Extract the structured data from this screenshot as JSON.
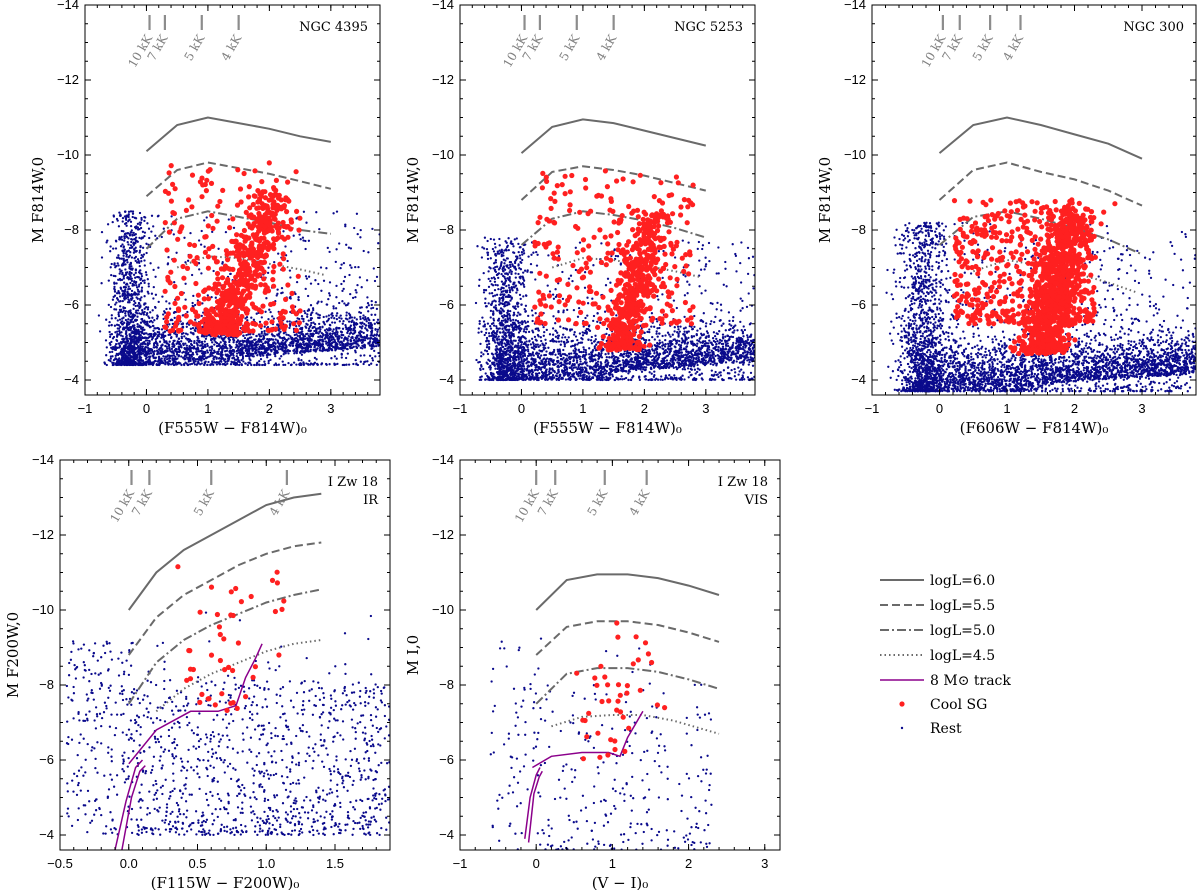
{
  "colors": {
    "curve": "#6a6a6a",
    "coolsg": "#ff2020",
    "rest": "#0a0a8c",
    "track": "#8b008b",
    "temp": "#8c8c8c"
  },
  "legend": {
    "items": [
      {
        "label": "logL=6.0",
        "kind": "solid"
      },
      {
        "label": "logL=5.5",
        "kind": "dashed"
      },
      {
        "label": "logL=5.0",
        "kind": "dashdot"
      },
      {
        "label": "logL=4.5",
        "kind": "dotted"
      },
      {
        "label": "8 M⊙ track",
        "kind": "track"
      },
      {
        "label": "Cool SG",
        "kind": "coolsg"
      },
      {
        "label": "Rest",
        "kind": "rest"
      }
    ]
  },
  "chart_data": [
    {
      "id": "ngc4395",
      "type": "scatter",
      "title": "NGC 4395",
      "xlabel": "(F555W − F814W)₀",
      "ylabel": "M F814W,0",
      "xlim": [
        -1,
        3.8
      ],
      "ylim": [
        -3.6,
        -14
      ],
      "xticks": [
        -1,
        0,
        1,
        2,
        3
      ],
      "xtick_labels": [
        "−1",
        "0",
        "1",
        "2",
        "3"
      ],
      "yticks": [
        -4,
        -6,
        -8,
        -10,
        -12,
        -14
      ],
      "ytick_labels": [
        "−4",
        "−6",
        "−8",
        "−10",
        "−12",
        "−14"
      ],
      "temperature_marks": [
        {
          "x": 0.05,
          "label": "10 kK"
        },
        {
          "x": 0.3,
          "label": "7 kK"
        },
        {
          "x": 0.9,
          "label": "5 kK"
        },
        {
          "x": 1.5,
          "label": "4 kK"
        }
      ],
      "curves": [
        {
          "name": "logL=6.0",
          "style": "solid",
          "x": [
            0,
            0.5,
            1,
            1.5,
            2,
            2.5,
            3
          ],
          "y": [
            -10.1,
            -10.8,
            -11,
            -10.85,
            -10.7,
            -10.5,
            -10.35
          ]
        },
        {
          "name": "logL=5.5",
          "style": "dashed",
          "x": [
            0,
            0.5,
            1,
            1.5,
            2,
            2.5,
            3
          ],
          "y": [
            -8.9,
            -9.6,
            -9.8,
            -9.65,
            -9.5,
            -9.3,
            -9.1
          ]
        },
        {
          "name": "logL=5.0",
          "style": "dashdot",
          "x": [
            0,
            0.5,
            1,
            1.5,
            2,
            2.5,
            3
          ],
          "y": [
            -7.5,
            -8.3,
            -8.5,
            -8.35,
            -8.2,
            -8.0,
            -7.9
          ]
        },
        {
          "name": "logL=4.5",
          "style": "dotted",
          "x": [
            0.5,
            1,
            1.5,
            2,
            2.5,
            2.9
          ],
          "y": [
            -7.0,
            -7.3,
            -7.25,
            -7.1,
            -6.95,
            -6.8
          ]
        }
      ],
      "rest": {
        "n": 3600,
        "faint": -4.4,
        "xmin": -0.6,
        "xmax": 3.8,
        "xfaint": -0.4,
        "bright": -8.5
      },
      "coolsg": {
        "n": 750,
        "seq": {
          "x0": 1.2,
          "y0": -5.2,
          "x1": 2.1,
          "y1": -9.0
        },
        "sparse": {
          "x0": 0.3,
          "x1": 2.5,
          "ybot": -5.3,
          "ytop": -9.8
        },
        "bottom": -5.2
      }
    },
    {
      "id": "ngc5253",
      "type": "scatter",
      "title": "NGC 5253",
      "xlabel": "(F555W − F814W)₀",
      "ylabel": "M F814W,0",
      "xlim": [
        -1,
        3.8
      ],
      "ylim": [
        -3.6,
        -14
      ],
      "xticks": [
        -1,
        0,
        1,
        2,
        3
      ],
      "xtick_labels": [
        "−1",
        "0",
        "1",
        "2",
        "3"
      ],
      "yticks": [
        -4,
        -6,
        -8,
        -10,
        -12,
        -14
      ],
      "ytick_labels": [
        "−4",
        "−6",
        "−8",
        "−10",
        "−12",
        "−14"
      ],
      "temperature_marks": [
        {
          "x": 0.05,
          "label": "10 kK"
        },
        {
          "x": 0.3,
          "label": "7 kK"
        },
        {
          "x": 0.9,
          "label": "5 kK"
        },
        {
          "x": 1.5,
          "label": "4 kK"
        }
      ],
      "curves": [
        {
          "name": "logL=6.0",
          "style": "solid",
          "x": [
            0,
            0.5,
            1,
            1.5,
            2,
            2.5,
            3
          ],
          "y": [
            -10.05,
            -10.75,
            -10.95,
            -10.85,
            -10.65,
            -10.45,
            -10.25
          ]
        },
        {
          "name": "logL=5.5",
          "style": "dashed",
          "x": [
            0,
            0.5,
            1,
            1.5,
            2,
            2.5,
            3
          ],
          "y": [
            -8.8,
            -9.55,
            -9.7,
            -9.6,
            -9.45,
            -9.25,
            -9.05
          ]
        },
        {
          "name": "logL=5.0",
          "style": "dashdot",
          "x": [
            0,
            0.5,
            1,
            1.5,
            2,
            2.5,
            3
          ],
          "y": [
            -7.6,
            -8.3,
            -8.5,
            -8.4,
            -8.25,
            -8.05,
            -7.8
          ]
        },
        {
          "name": "logL=4.5",
          "style": "dotted",
          "x": [
            0.5,
            1,
            1.5,
            2,
            2.5,
            2.9
          ],
          "y": [
            -7.0,
            -7.25,
            -7.2,
            -7.05,
            -6.9,
            -6.75
          ]
        }
      ],
      "rest": {
        "n": 3600,
        "faint": -4.0,
        "xmin": -0.7,
        "xmax": 3.8,
        "xfaint": -0.4,
        "bright": -7.8
      },
      "coolsg": {
        "n": 700,
        "seq": {
          "x0": 1.55,
          "y0": -4.8,
          "x1": 2.2,
          "y1": -8.5
        },
        "sparse": {
          "x0": 0.2,
          "x1": 2.8,
          "ybot": -5.5,
          "ytop": -9.6
        },
        "bottom": -4.8
      }
    },
    {
      "id": "ngc300",
      "type": "scatter",
      "title": "NGC 300",
      "xlabel": "(F606W − F814W)₀",
      "ylabel": "M F814W,0",
      "xlim": [
        -1,
        3.8
      ],
      "ylim": [
        -3.6,
        -14
      ],
      "xticks": [
        -1,
        0,
        1,
        2,
        3
      ],
      "xtick_labels": [
        "−1",
        "0",
        "1",
        "2",
        "3"
      ],
      "yticks": [
        -4,
        -6,
        -8,
        -10,
        -12,
        -14
      ],
      "ytick_labels": [
        "−4",
        "−6",
        "−8",
        "−10",
        "−12",
        "−14"
      ],
      "temperature_marks": [
        {
          "x": 0.05,
          "label": "10 kK"
        },
        {
          "x": 0.3,
          "label": "7 kK"
        },
        {
          "x": 0.75,
          "label": "5 kK"
        },
        {
          "x": 1.2,
          "label": "4 kK"
        }
      ],
      "curves": [
        {
          "name": "logL=6.0",
          "style": "solid",
          "x": [
            0,
            0.5,
            1,
            1.5,
            2,
            2.5,
            3
          ],
          "y": [
            -10.05,
            -10.8,
            -11,
            -10.8,
            -10.55,
            -10.3,
            -9.9
          ]
        },
        {
          "name": "logL=5.5",
          "style": "dashed",
          "x": [
            0,
            0.5,
            1,
            1.5,
            2,
            2.5,
            3
          ],
          "y": [
            -8.8,
            -9.6,
            -9.8,
            -9.55,
            -9.35,
            -9.05,
            -8.65
          ]
        },
        {
          "name": "logL=5.0",
          "style": "dashdot",
          "x": [
            0,
            0.5,
            1,
            1.5,
            2,
            2.5,
            3
          ],
          "y": [
            -7.6,
            -8.35,
            -8.5,
            -8.3,
            -8.05,
            -7.75,
            -7.35
          ]
        },
        {
          "name": "logL=4.5",
          "style": "dotted",
          "x": [
            0.5,
            1,
            1.5,
            2,
            2.5,
            2.9
          ],
          "y": [
            -6.9,
            -7.2,
            -7.05,
            -6.85,
            -6.6,
            -6.35
          ]
        }
      ],
      "rest": {
        "n": 4200,
        "faint": -3.7,
        "xmin": -0.4,
        "xmax": 3.8,
        "xfaint": -0.4,
        "bright": -8.2
      },
      "coolsg": {
        "n": 1400,
        "seq": {
          "x0": 1.5,
          "y0": -4.7,
          "x1": 2.0,
          "y1": -8.5
        },
        "sparse": {
          "x0": 0.2,
          "x1": 2.3,
          "ybot": -5.5,
          "ytop": -8.8
        },
        "bottom": -4.7
      }
    },
    {
      "id": "izw18ir",
      "type": "scatter",
      "title": "I Zw 18",
      "subtitle": "IR",
      "xlabel": "(F115W − F200W)₀",
      "ylabel": "M F200W,0",
      "xlim": [
        -0.5,
        1.9
      ],
      "ylim": [
        -3.6,
        -14
      ],
      "xticks": [
        -0.5,
        0,
        0.5,
        1,
        1.5
      ],
      "xtick_labels": [
        "−0.5",
        "0.0",
        "0.5",
        "1.0",
        "1.5"
      ],
      "yticks": [
        -4,
        -6,
        -8,
        -10,
        -12,
        -14
      ],
      "ytick_labels": [
        "−4",
        "−6",
        "−8",
        "−10",
        "−12",
        "−14"
      ],
      "temperature_marks": [
        {
          "x": 0.02,
          "label": "10 kK"
        },
        {
          "x": 0.15,
          "label": "7 kK"
        },
        {
          "x": 0.6,
          "label": "5 kK"
        },
        {
          "x": 1.15,
          "label": "4 kK"
        }
      ],
      "curves": [
        {
          "name": "logL=6.0",
          "style": "solid",
          "x": [
            0,
            0.2,
            0.4,
            0.6,
            0.8,
            1.0,
            1.2,
            1.4
          ],
          "y": [
            -10.0,
            -11.0,
            -11.6,
            -12.0,
            -12.4,
            -12.8,
            -13.0,
            -13.1
          ]
        },
        {
          "name": "logL=5.5",
          "style": "dashed",
          "x": [
            0,
            0.2,
            0.4,
            0.6,
            0.8,
            1.0,
            1.2,
            1.4
          ],
          "y": [
            -8.8,
            -9.8,
            -10.4,
            -10.8,
            -11.2,
            -11.5,
            -11.7,
            -11.8
          ]
        },
        {
          "name": "logL=5.0",
          "style": "dashdot",
          "x": [
            0,
            0.2,
            0.4,
            0.6,
            0.8,
            1.0,
            1.2,
            1.4
          ],
          "y": [
            -7.5,
            -8.6,
            -9.2,
            -9.6,
            -9.9,
            -10.2,
            -10.4,
            -10.55
          ]
        },
        {
          "name": "logL=4.5",
          "style": "dotted",
          "x": [
            0.2,
            0.4,
            0.6,
            0.8,
            1.0,
            1.2,
            1.4
          ],
          "y": [
            -7.3,
            -7.9,
            -8.3,
            -8.6,
            -8.9,
            -9.1,
            -9.2
          ]
        }
      ],
      "track": [
        {
          "x": [
            -0.1,
            -0.02,
            0.05,
            0.1
          ],
          "y": [
            -3.6,
            -4.9,
            -5.8,
            -6.0
          ]
        },
        {
          "x": [
            -0.05,
            0.02,
            0.08,
            0.12
          ],
          "y": [
            -3.6,
            -5.0,
            -5.7,
            -5.85
          ]
        },
        {
          "x": [
            0.0,
            0.2,
            0.45,
            0.65,
            0.78,
            0.85,
            0.92,
            0.97
          ],
          "y": [
            -5.9,
            -6.8,
            -7.3,
            -7.3,
            -7.45,
            -8.2,
            -8.7,
            -9.1
          ]
        }
      ],
      "rest": {
        "n": 1300,
        "faint": -4.0,
        "xmin": -0.45,
        "xmax": 1.9,
        "xfaint": -0.45,
        "bright": -9.5,
        "uniform": true
      },
      "coolsg": {
        "n": 45,
        "seq": {
          "x0": 0.6,
          "y0": -7.5,
          "x1": 0.95,
          "y1": -11.3
        },
        "sparse": {
          "x0": 0.25,
          "x1": 1.0,
          "ybot": -7.3,
          "ytop": -11.2
        },
        "bottom": -7.3
      }
    },
    {
      "id": "izw18vis",
      "type": "scatter",
      "title": "I Zw 18",
      "subtitle": "VIS",
      "xlabel": "(V − I)₀",
      "ylabel": "M I,0",
      "xlim": [
        -1,
        3.2
      ],
      "ylim": [
        -3.6,
        -14
      ],
      "xticks": [
        -1,
        0,
        1,
        2,
        3
      ],
      "xtick_labels": [
        "−1",
        "0",
        "1",
        "2",
        "3"
      ],
      "yticks": [
        -4,
        -6,
        -8,
        -10,
        -12,
        -14
      ],
      "ytick_labels": [
        "−4",
        "−6",
        "−8",
        "−10",
        "−12",
        "−14"
      ],
      "temperature_marks": [
        {
          "x": 0.0,
          "label": "10 kK"
        },
        {
          "x": 0.25,
          "label": "7 kK"
        },
        {
          "x": 0.9,
          "label": "5 kK"
        },
        {
          "x": 1.45,
          "label": "4 kK"
        }
      ],
      "curves": [
        {
          "name": "logL=6.0",
          "style": "solid",
          "x": [
            0,
            0.4,
            0.8,
            1.2,
            1.6,
            2.0,
            2.4
          ],
          "y": [
            -10.0,
            -10.8,
            -10.95,
            -10.95,
            -10.85,
            -10.65,
            -10.4
          ]
        },
        {
          "name": "logL=5.5",
          "style": "dashed",
          "x": [
            0,
            0.4,
            0.8,
            1.2,
            1.6,
            2.0,
            2.4
          ],
          "y": [
            -8.8,
            -9.55,
            -9.7,
            -9.7,
            -9.6,
            -9.4,
            -9.15
          ]
        },
        {
          "name": "logL=5.0",
          "style": "dashdot",
          "x": [
            0,
            0.4,
            0.8,
            1.2,
            1.6,
            2.0,
            2.4
          ],
          "y": [
            -7.5,
            -8.3,
            -8.45,
            -8.45,
            -8.35,
            -8.15,
            -7.9
          ]
        },
        {
          "name": "logL=4.5",
          "style": "dotted",
          "x": [
            0.2,
            0.6,
            1.0,
            1.4,
            1.8,
            2.4
          ],
          "y": [
            -6.9,
            -7.15,
            -7.2,
            -7.2,
            -7.05,
            -6.7
          ]
        }
      ],
      "track": [
        {
          "x": [
            -0.15,
            -0.08,
            0.0,
            0.05
          ],
          "y": [
            -3.9,
            -5.0,
            -5.6,
            -5.8
          ]
        },
        {
          "x": [
            -0.1,
            -0.03,
            0.04,
            0.08
          ],
          "y": [
            -3.8,
            -5.1,
            -5.55,
            -5.7
          ]
        },
        {
          "x": [
            -0.05,
            0.2,
            0.6,
            0.95,
            1.1,
            1.2,
            1.4
          ],
          "y": [
            -5.8,
            -6.1,
            -6.2,
            -6.2,
            -6.1,
            -6.6,
            -7.3
          ]
        }
      ],
      "rest": {
        "n": 320,
        "faint": -3.6,
        "xmin": -0.6,
        "xmax": 2.3,
        "xfaint": -0.6,
        "bright": -9.6,
        "uniform": true
      },
      "coolsg": {
        "n": 40,
        "seq": {
          "x0": 0.9,
          "y0": -6.1,
          "x1": 1.4,
          "y1": -9.5
        },
        "sparse": {
          "x0": 0.3,
          "x1": 1.7,
          "ybot": -6.2,
          "ytop": -9.6
        },
        "bottom": -6.0
      }
    }
  ]
}
